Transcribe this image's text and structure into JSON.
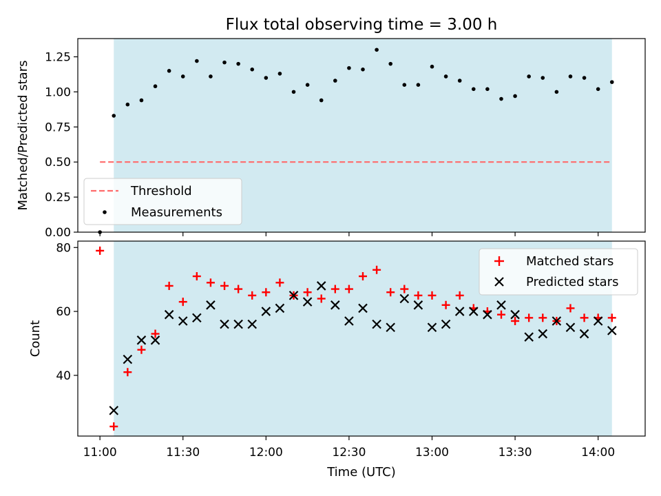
{
  "chart_data": [
    {
      "type": "scatter",
      "title": "Flux total observing time = 3.00 h",
      "xlabel": "",
      "ylabel": "Matched/Predicted stars",
      "ylim": [
        0,
        1.38
      ],
      "yticks": [
        "0.00",
        "0.25",
        "0.50",
        "0.75",
        "1.00",
        "1.25"
      ],
      "shaded_region": {
        "start": "11:05",
        "end": "14:05",
        "color": "#add8e6"
      },
      "threshold": {
        "name": "Threshold",
        "value": 0.5,
        "from": "11:00",
        "to": "14:05",
        "color": "#ff6b6b"
      },
      "series": [
        {
          "name": "Measurements",
          "color": "#000000",
          "x": [
            "11:00",
            "11:05",
            "11:10",
            "11:15",
            "11:20",
            "11:25",
            "11:30",
            "11:35",
            "11:40",
            "11:45",
            "11:50",
            "11:55",
            "12:00",
            "12:05",
            "12:10",
            "12:15",
            "12:20",
            "12:25",
            "12:30",
            "12:35",
            "12:40",
            "12:45",
            "12:50",
            "12:55",
            "13:00",
            "13:05",
            "13:10",
            "13:15",
            "13:20",
            "13:25",
            "13:30",
            "13:35",
            "13:40",
            "13:45",
            "13:50",
            "13:55",
            "14:00",
            "14:05"
          ],
          "values": [
            0.0,
            0.83,
            0.91,
            0.94,
            1.04,
            1.15,
            1.11,
            1.22,
            1.11,
            1.21,
            1.2,
            1.16,
            1.1,
            1.13,
            1.0,
            1.05,
            0.94,
            1.08,
            1.17,
            1.16,
            1.3,
            1.2,
            1.05,
            1.05,
            1.18,
            1.11,
            1.08,
            1.02,
            1.02,
            0.95,
            0.97,
            1.11,
            1.1,
            1.0,
            1.11,
            1.1,
            1.02,
            1.07
          ]
        }
      ],
      "legend": {
        "position": "lower-left",
        "entries": [
          "Threshold",
          "Measurements"
        ]
      }
    },
    {
      "type": "scatter",
      "title": "",
      "xlabel": "Time (UTC)",
      "ylabel": "Count",
      "ylim": [
        21,
        82
      ],
      "yticks": [
        "40",
        "60",
        "80"
      ],
      "xlim": [
        "10:52",
        "14:17"
      ],
      "xticks": [
        "11:00",
        "11:30",
        "12:00",
        "12:30",
        "13:00",
        "13:30",
        "14:00"
      ],
      "shaded_region": {
        "start": "11:05",
        "end": "14:05",
        "color": "#add8e6"
      },
      "series": [
        {
          "name": "Matched stars",
          "marker": "+",
          "color": "#ff0000",
          "x": [
            "11:00",
            "11:05",
            "11:10",
            "11:15",
            "11:20",
            "11:25",
            "11:30",
            "11:35",
            "11:40",
            "11:45",
            "11:50",
            "11:55",
            "12:00",
            "12:05",
            "12:10",
            "12:15",
            "12:20",
            "12:25",
            "12:30",
            "12:35",
            "12:40",
            "12:45",
            "12:50",
            "12:55",
            "13:00",
            "13:05",
            "13:10",
            "13:15",
            "13:20",
            "13:25",
            "13:30",
            "13:35",
            "13:40",
            "13:45",
            "13:50",
            "13:55",
            "14:00",
            "14:05"
          ],
          "values": [
            79,
            24,
            41,
            48,
            53,
            68,
            63,
            71,
            69,
            68,
            67,
            65,
            66,
            69,
            65,
            66,
            64,
            67,
            67,
            71,
            73,
            66,
            67,
            65,
            65,
            62,
            65,
            61,
            60,
            59,
            57,
            58,
            58,
            57,
            61,
            58,
            58,
            58
          ]
        },
        {
          "name": "Predicted stars",
          "marker": "x",
          "color": "#000000",
          "x": [
            "11:05",
            "11:10",
            "11:15",
            "11:20",
            "11:25",
            "11:30",
            "11:35",
            "11:40",
            "11:45",
            "11:50",
            "11:55",
            "12:00",
            "12:05",
            "12:10",
            "12:15",
            "12:20",
            "12:25",
            "12:30",
            "12:35",
            "12:40",
            "12:45",
            "12:50",
            "12:55",
            "13:00",
            "13:05",
            "13:10",
            "13:15",
            "13:20",
            "13:25",
            "13:30",
            "13:35",
            "13:40",
            "13:45",
            "13:50",
            "13:55",
            "14:00",
            "14:05"
          ],
          "values": [
            29,
            45,
            51,
            51,
            59,
            57,
            58,
            62,
            56,
            56,
            56,
            60,
            61,
            65,
            63,
            68,
            62,
            57,
            61,
            56,
            55,
            64,
            62,
            55,
            56,
            60,
            60,
            59,
            62,
            59,
            52,
            53,
            57,
            55,
            53,
            57,
            54
          ]
        }
      ],
      "legend": {
        "position": "upper-right",
        "entries": [
          "Matched stars",
          "Predicted stars"
        ]
      }
    }
  ]
}
